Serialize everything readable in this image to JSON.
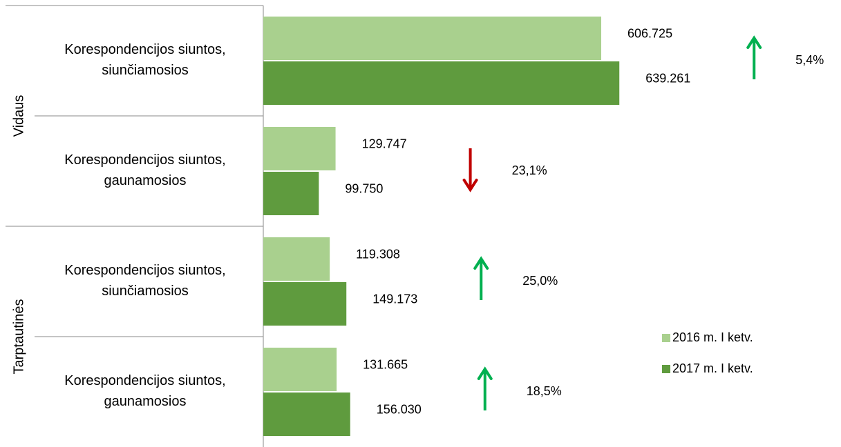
{
  "chart_data": {
    "type": "bar",
    "orientation": "horizontal",
    "groups": [
      "Vidaus",
      "Tarptautinės"
    ],
    "category_groups": [
      0,
      0,
      1,
      1
    ],
    "categories": [
      [
        "Korespondencijos siuntos,",
        "siunčiamosios"
      ],
      [
        "Korespondencijos siuntos,",
        "gaunamosios"
      ],
      [
        "Korespondencijos siuntos,",
        "siunčiamosios"
      ],
      [
        "Korespondencijos siuntos,",
        "gaunamosios"
      ]
    ],
    "series": [
      {
        "name": "2016 m. I ketv.",
        "color": "#a9d08e",
        "values": [
          606725,
          129747,
          119308,
          131665
        ],
        "value_labels": [
          "606.725",
          "129.747",
          "119.308",
          "131.665"
        ]
      },
      {
        "name": "2017 m. I ketv.",
        "color": "#5f9b3e",
        "values": [
          639261,
          99750,
          149173,
          156030
        ],
        "value_labels": [
          "639.261",
          "99.750",
          "149.173",
          "156.030"
        ]
      }
    ],
    "changes": {
      "values": [
        5.4,
        23.1,
        25.0,
        18.5
      ],
      "value_labels": [
        "5,4%",
        "23,1%",
        "25,0%",
        "18,5%"
      ],
      "directions": [
        "up",
        "down",
        "up",
        "up"
      ],
      "colors": {
        "up": "#00b050",
        "down": "#c00000"
      }
    },
    "xlim": [
      0,
      1000000
    ],
    "legend": "right"
  }
}
